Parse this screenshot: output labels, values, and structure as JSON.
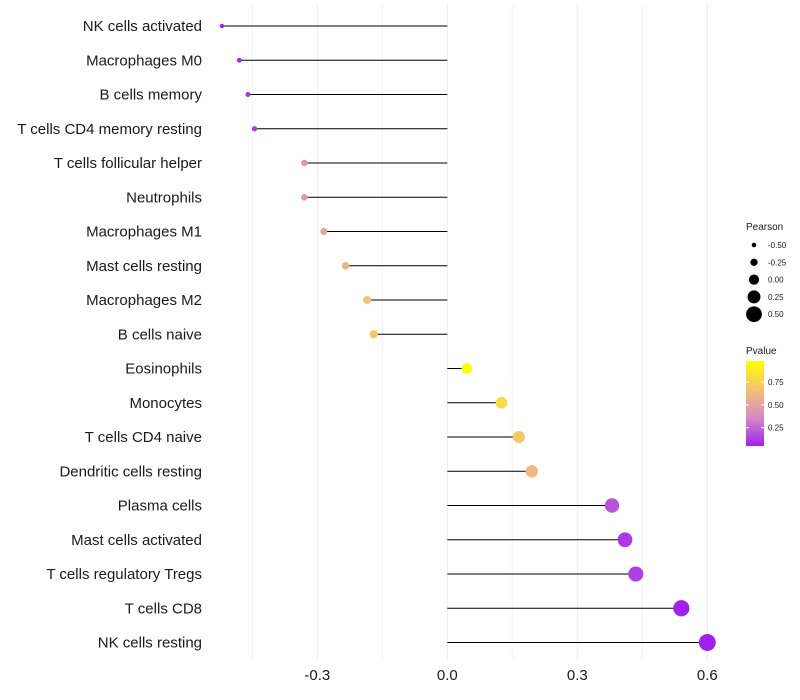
{
  "chart_data": {
    "type": "lollipop",
    "title": "",
    "xlabel": "",
    "ylabel": "",
    "xlim": [
      -0.52,
      0.62
    ],
    "x_ticks": [
      -0.3,
      0.0,
      0.3,
      0.6
    ],
    "x_tick_labels": [
      "-0.3",
      "0.0",
      "0.3",
      "0.6"
    ],
    "grid": true,
    "categories": [
      "NK cells activated",
      "Macrophages M0",
      "B cells memory",
      "T cells CD4 memory resting",
      "T cells follicular helper",
      "Neutrophils",
      "Macrophages M1",
      "Mast cells resting",
      "Macrophages M2",
      "B cells naive",
      "Eosinophils",
      "Monocytes",
      "T cells CD4 naive",
      "Dendritic cells resting",
      "Plasma cells",
      "Mast cells activated",
      "T cells regulatory  Tregs",
      "T cells CD8",
      "NK cells resting"
    ],
    "series": [
      {
        "name": "Pearson",
        "values": [
          -0.52,
          -0.48,
          -0.46,
          -0.445,
          -0.33,
          -0.33,
          -0.285,
          -0.235,
          -0.185,
          -0.17,
          0.045,
          0.125,
          0.165,
          0.195,
          0.38,
          0.41,
          0.435,
          0.54,
          0.6
        ]
      },
      {
        "name": "Pvalue",
        "values": [
          0.03,
          0.08,
          0.1,
          0.12,
          0.42,
          0.42,
          0.5,
          0.58,
          0.68,
          0.7,
          0.98,
          0.8,
          0.7,
          0.62,
          0.2,
          0.12,
          0.14,
          0.05,
          0.03
        ]
      }
    ],
    "legend": {
      "position": "right",
      "size": {
        "title": "Pearson",
        "values": [
          -0.5,
          -0.25,
          0.0,
          0.25,
          0.5
        ],
        "labels": [
          "-0.50",
          "-0.25",
          "0.00",
          "0.25",
          "0.50"
        ]
      },
      "color": {
        "title": "Pvalue",
        "min": 0.05,
        "max": 0.98,
        "ticks": [
          0.25,
          0.5,
          0.75
        ],
        "labels": [
          "0.25",
          "0.50",
          "0.75"
        ],
        "colors": [
          "#a020f0",
          "#d58ac6",
          "#f5c270",
          "#ffff00"
        ]
      }
    }
  }
}
